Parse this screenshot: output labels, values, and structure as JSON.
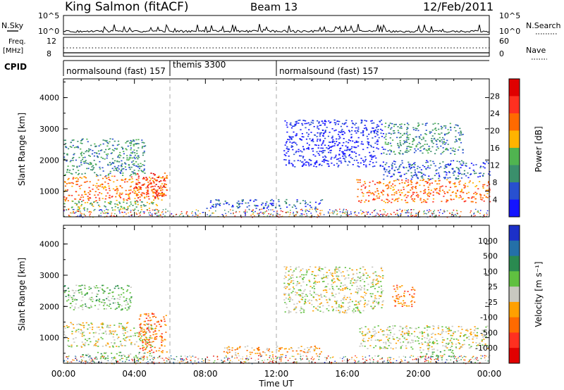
{
  "header": {
    "title": "King Salmon (fitACF)",
    "beam": "Beam 13",
    "date": "12/Feb/2011"
  },
  "status_panels": {
    "nsky_label": "N.Sky",
    "nsky_ticks": [
      "10^5",
      "10^0"
    ],
    "nsearch_label": "N.Search",
    "nsearch_ticks": [
      "10^5",
      "10^0"
    ],
    "freq_label": "Freq.",
    "freq_unit": "[MHz]",
    "freq_ticks": [
      "12",
      "8"
    ],
    "nave_label": "Nave",
    "nave_ticks": [
      "60",
      "0"
    ],
    "cpid_label": "CPID",
    "cpid_segments": [
      {
        "label": "normalsound (fast) 157",
        "start_hour": 0,
        "end_hour": 6
      },
      {
        "label": "themis 3300",
        "start_hour": 6,
        "end_hour": 12
      },
      {
        "label": "normalsound (fast) 157",
        "start_hour": 12,
        "end_hour": 24
      }
    ]
  },
  "chart_data": [
    {
      "type": "heatmap",
      "quantity": "Power",
      "ylabel": "Slant Range [km]",
      "xlim": [
        0,
        24
      ],
      "ylim": [
        180,
        4600
      ],
      "yticks": [
        1000,
        2000,
        3000,
        4000
      ],
      "colorbar_label": "Power [dB]",
      "colorbar_ticks": [
        "4",
        "8",
        "12",
        "16",
        "20",
        "24",
        "28"
      ],
      "colorbar_colors": [
        "#1414ff",
        "#2850d0",
        "#3a8f6c",
        "#50b450",
        "#ffb400",
        "#ff6a00",
        "#ff3020",
        "#e00000"
      ],
      "echo_regions": [
        {
          "t0": 0.0,
          "t1": 5.8,
          "r0": 700,
          "r1": 1500,
          "level": 5
        },
        {
          "t0": 0.0,
          "t1": 4.6,
          "r0": 1500,
          "r1": 2700,
          "level": 2
        },
        {
          "t0": 0.0,
          "t1": 5.4,
          "r0": 400,
          "r1": 700,
          "level": 3
        },
        {
          "t0": 4.0,
          "t1": 5.8,
          "r0": 800,
          "r1": 1600,
          "level": 6
        },
        {
          "t0": 8.0,
          "t1": 14.6,
          "r0": 450,
          "r1": 750,
          "level": 1
        },
        {
          "t0": 12.4,
          "t1": 18.0,
          "r0": 1800,
          "r1": 3300,
          "level": 0
        },
        {
          "t0": 16.5,
          "t1": 24.0,
          "r0": 650,
          "r1": 1400,
          "level": 5
        },
        {
          "t0": 18.0,
          "t1": 24.0,
          "r0": 1400,
          "r1": 2000,
          "level": 1
        },
        {
          "t0": 18.0,
          "t1": 22.5,
          "r0": 2200,
          "r1": 3200,
          "level": 2
        }
      ]
    },
    {
      "type": "heatmap",
      "quantity": "Velocity",
      "xlabel": "Time UT",
      "ylabel": "Slant Range [km]",
      "xlim": [
        0,
        24
      ],
      "ylim": [
        180,
        4600
      ],
      "xticks": [
        "00:00",
        "04:00",
        "08:00",
        "12:00",
        "16:00",
        "20:00",
        "00:00"
      ],
      "yticks": [
        1000,
        2000,
        3000,
        4000
      ],
      "colorbar_label": "Velocity [m s⁻¹]",
      "colorbar_ticks": [
        "1000",
        "500",
        "100",
        "25",
        "-25",
        "-100",
        "-500",
        "-1000"
      ],
      "colorbar_colors": [
        "#1c30c8",
        "#2470a8",
        "#2a8a50",
        "#60c040",
        "#c8c8c0",
        "#ffa000",
        "#ff6a00",
        "#ff3020",
        "#e00000"
      ],
      "echo_regions": [
        {
          "t0": 0.0,
          "t1": 5.0,
          "r0": 700,
          "r1": 1500,
          "level": 4
        },
        {
          "t0": 0.0,
          "t1": 3.8,
          "r0": 1900,
          "r1": 2700,
          "level": 3
        },
        {
          "t0": 4.2,
          "t1": 5.8,
          "r0": 500,
          "r1": 1800,
          "level": 6
        },
        {
          "t0": 1.0,
          "t1": 5.0,
          "r0": 300,
          "r1": 550,
          "level": 3
        },
        {
          "t0": 9.0,
          "t1": 14.5,
          "r0": 450,
          "r1": 750,
          "level": 5
        },
        {
          "t0": 12.4,
          "t1": 18.0,
          "r0": 1800,
          "r1": 3300,
          "level": 4
        },
        {
          "t0": 16.5,
          "t1": 24.0,
          "r0": 650,
          "r1": 1400,
          "level": 4
        },
        {
          "t0": 18.5,
          "t1": 19.8,
          "r0": 2000,
          "r1": 2700,
          "level": 6
        },
        {
          "t0": 20.0,
          "t1": 22.0,
          "r0": 350,
          "r1": 650,
          "level": 3
        }
      ]
    }
  ]
}
